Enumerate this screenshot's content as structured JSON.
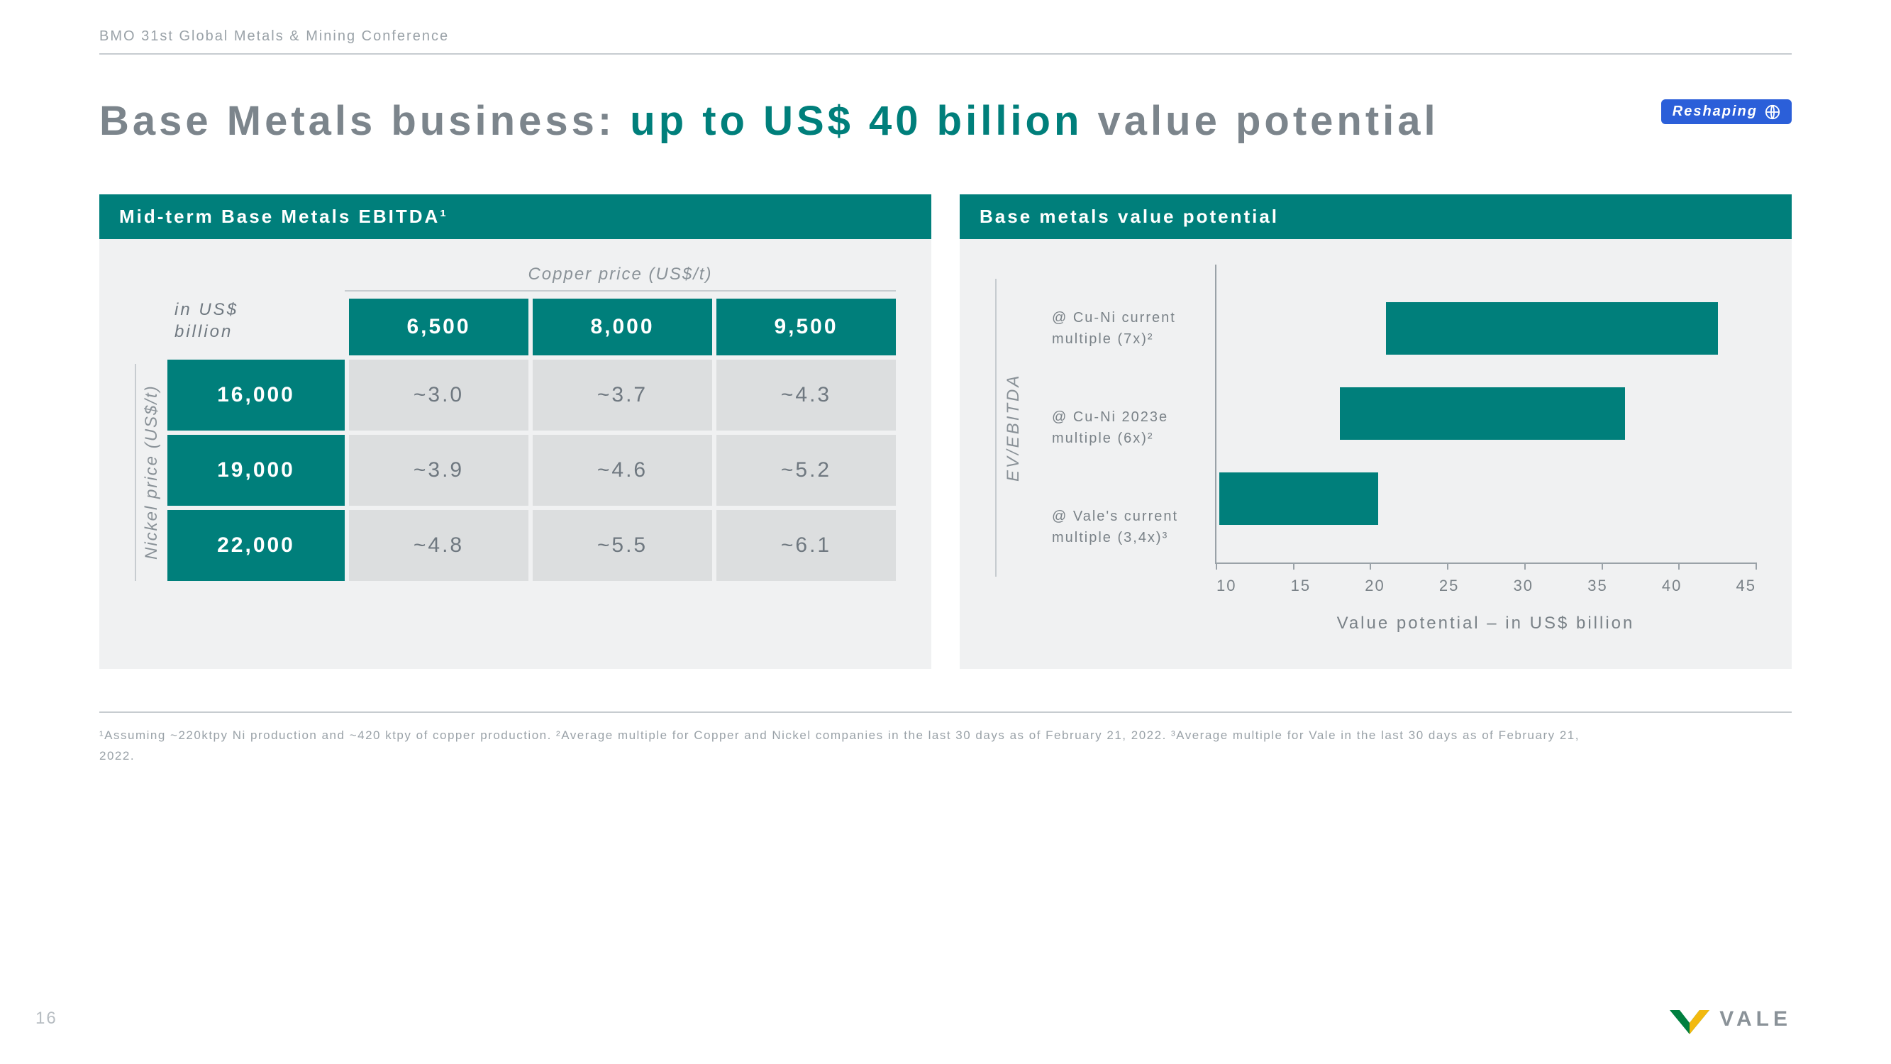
{
  "header": {
    "label": "BMO 31st Global Metals & Mining Conference"
  },
  "badge": {
    "text": "Reshaping"
  },
  "title": {
    "prefix": "Base Metals business: ",
    "accent": "up to US$ 40 billion",
    "suffix": " value potential"
  },
  "colors": {
    "teal": "#007f7b",
    "panel_bg": "#f0f1f2",
    "cell_bg": "#dcdedf",
    "text_muted": "#7a8288"
  },
  "left_panel": {
    "title": "Mid-term Base Metals EBITDA¹",
    "x_axis": "Copper price (US$/t)",
    "y_axis": "Nickel price (US$/t)",
    "unit": "in US$ billion",
    "col_headers": [
      "6,500",
      "8,000",
      "9,500"
    ],
    "row_headers": [
      "16,000",
      "19,000",
      "22,000"
    ],
    "rows": [
      [
        "~3.0",
        "~3.7",
        "~4.3"
      ],
      [
        "~3.9",
        "~4.6",
        "~5.2"
      ],
      [
        "~4.8",
        "~5.5",
        "~6.1"
      ]
    ]
  },
  "right_panel": {
    "title": "Base metals value potential",
    "y_axis": "EV/EBITDA",
    "x_title": "Value potential – in US$ billion",
    "x_min": 10,
    "x_max": 45,
    "x_ticks": [
      10,
      15,
      20,
      25,
      30,
      35,
      40,
      45
    ],
    "bars": [
      {
        "label1": "@ Cu-Ni current",
        "label2": "multiple (7x)²",
        "start": 21,
        "end": 42.5,
        "color": "#007f7b"
      },
      {
        "label1": "@ Cu-Ni 2023e",
        "label2": "multiple (6x)²",
        "start": 18,
        "end": 36.5,
        "color": "#007f7b"
      },
      {
        "label1": "@ Vale's current",
        "label2": "multiple (3,4x)³",
        "start": 10.2,
        "end": 20.5,
        "color": "#007f7b"
      }
    ]
  },
  "footnote": "¹Assuming ~220ktpy Ni production and ~420 ktpy of copper production. ²Average multiple for Copper and Nickel companies in the last 30 days as of February 21, 2022. ³Average multiple for Vale in the last 30 days as of February 21, 2022.",
  "page_number": "16",
  "logo_text": "VALE",
  "logo_colors": {
    "green": "#007f3f",
    "yellow": "#f2b90f"
  }
}
